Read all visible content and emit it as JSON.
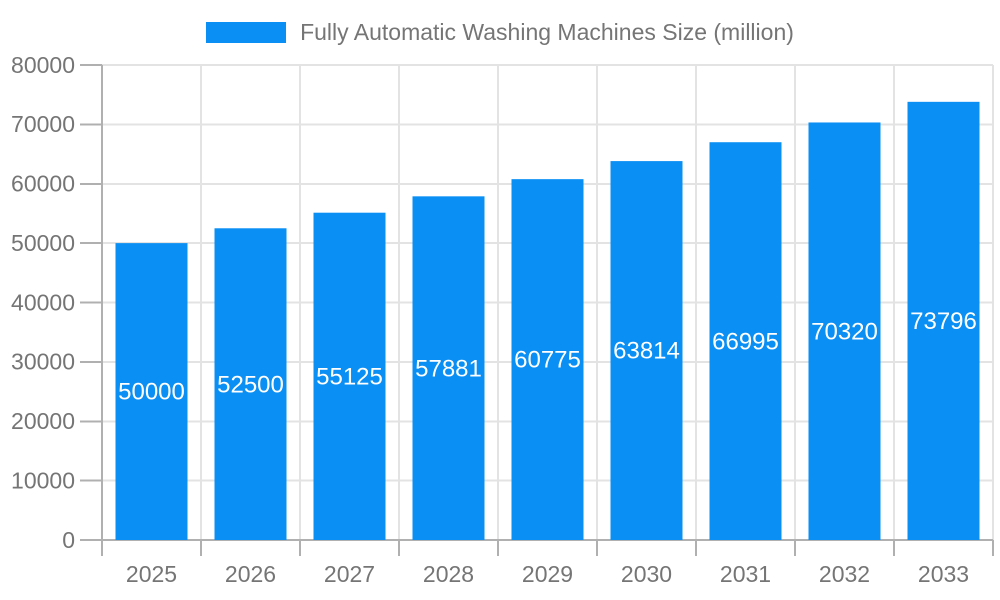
{
  "legend": {
    "label": "Fully Automatic Washing Machines Size (million)",
    "swatch_color": "#0a8ff4"
  },
  "colors": {
    "bar": "#0a8ff4",
    "grid": "#e3e3e3",
    "axis": "#b0b0b0",
    "tick": "#b0b0b0",
    "text": "#757575",
    "value_label": "#ffffff",
    "background": "#ffffff"
  },
  "chart_data": {
    "type": "bar",
    "title": "",
    "series_name": "Fully Automatic Washing Machines Size (million)",
    "categories": [
      "2025",
      "2026",
      "2027",
      "2028",
      "2029",
      "2030",
      "2031",
      "2032",
      "2033"
    ],
    "values": [
      50000,
      52500,
      55125,
      57881,
      60775,
      63814,
      66995,
      70320,
      73796
    ],
    "xlabel": "",
    "ylabel": "",
    "ylim": [
      0,
      80000
    ],
    "yticks": [
      0,
      10000,
      20000,
      30000,
      40000,
      50000,
      60000,
      70000,
      80000
    ],
    "grid": true,
    "legend_position": "top-center",
    "value_labels": "inside-middle-white"
  }
}
